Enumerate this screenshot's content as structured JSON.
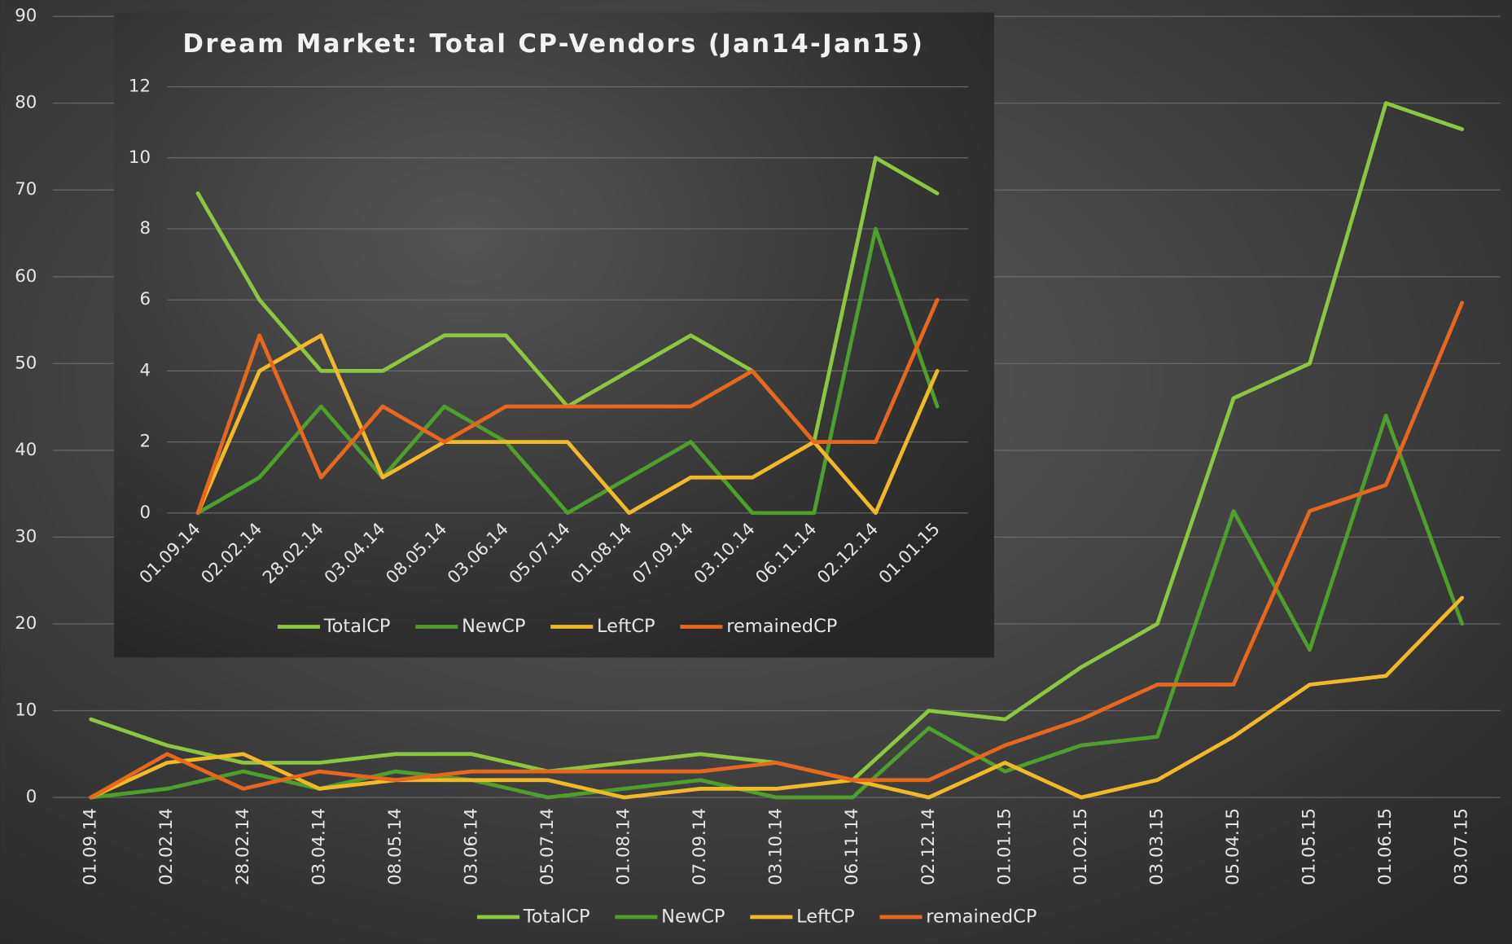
{
  "chart_data": [
    {
      "type": "line",
      "categories": [
        "01.09.14",
        "02.02.14",
        "28.02.14",
        "03.04.14",
        "08.05.14",
        "03.06.14",
        "05.07.14",
        "01.08.14",
        "07.09.14",
        "03.10.14",
        "06.11.14",
        "02.12.14",
        "01.01.15",
        "01.02.15",
        "03.03.15",
        "05.04.15",
        "01.05.15",
        "01.06.15",
        "03.07.15"
      ],
      "series": [
        {
          "name": "TotalCP",
          "color": "#8dc63f",
          "values": [
            9,
            6,
            4,
            4,
            5,
            5,
            3,
            4,
            5,
            4,
            2,
            10,
            9,
            15,
            20,
            46,
            50,
            80,
            77
          ]
        },
        {
          "name": "NewCP",
          "color": "#4e9f2b",
          "values": [
            0,
            1,
            3,
            1,
            3,
            2,
            0,
            1,
            2,
            0,
            0,
            8,
            3,
            6,
            7,
            33,
            17,
            44,
            20
          ]
        },
        {
          "name": "LeftCP",
          "color": "#f0b92a",
          "values": [
            0,
            4,
            5,
            1,
            2,
            2,
            2,
            0,
            1,
            1,
            2,
            0,
            4,
            0,
            2,
            7,
            13,
            14,
            23
          ]
        },
        {
          "name": "remainedCP",
          "color": "#e8671c",
          "values": [
            0,
            5,
            1,
            3,
            2,
            3,
            3,
            3,
            3,
            4,
            2,
            2,
            6,
            9,
            13,
            13,
            33,
            36,
            57
          ]
        }
      ],
      "ylim": [
        0,
        90
      ],
      "yticks": [
        0,
        10,
        20,
        30,
        40,
        50,
        60,
        70,
        80,
        90
      ],
      "grid": true,
      "legend": "bottom"
    },
    {
      "type": "line",
      "title": "Dream Market: Total CP-Vendors (Jan14-Jan15)",
      "categories": [
        "01.09.14",
        "02.02.14",
        "28.02.14",
        "03.04.14",
        "08.05.14",
        "03.06.14",
        "05.07.14",
        "01.08.14",
        "07.09.14",
        "03.10.14",
        "06.11.14",
        "02.12.14",
        "01.01.15"
      ],
      "series": [
        {
          "name": "TotalCP",
          "color": "#8dc63f",
          "values": [
            9,
            6,
            4,
            4,
            5,
            5,
            3,
            4,
            5,
            4,
            2,
            10,
            9
          ]
        },
        {
          "name": "NewCP",
          "color": "#4e9f2b",
          "values": [
            0,
            1,
            3,
            1,
            3,
            2,
            0,
            1,
            2,
            0,
            0,
            8,
            3
          ]
        },
        {
          "name": "LeftCP",
          "color": "#f0b92a",
          "values": [
            0,
            4,
            5,
            1,
            2,
            2,
            2,
            0,
            1,
            1,
            2,
            0,
            4
          ]
        },
        {
          "name": "remainedCP",
          "color": "#e8671c",
          "values": [
            0,
            5,
            1,
            3,
            2,
            3,
            3,
            3,
            3,
            4,
            2,
            2,
            6
          ]
        }
      ],
      "ylim": [
        0,
        12
      ],
      "yticks": [
        0,
        2,
        4,
        6,
        8,
        10,
        12
      ],
      "grid": true,
      "legend": "bottom"
    }
  ]
}
